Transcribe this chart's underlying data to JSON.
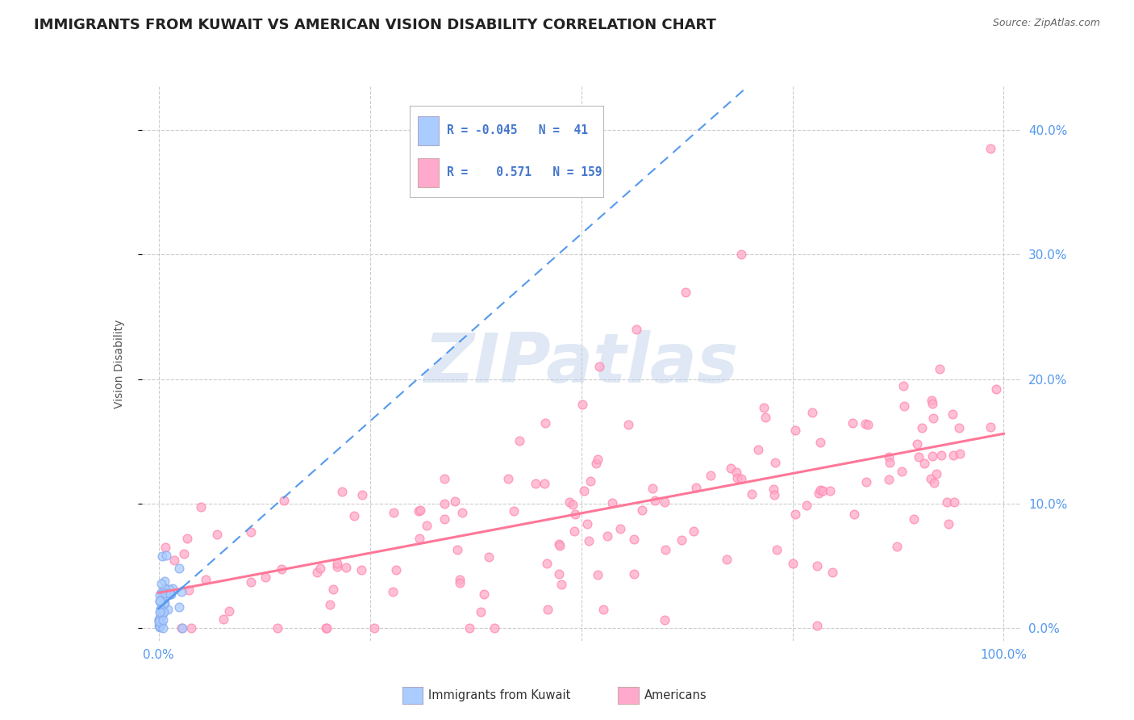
{
  "title": "IMMIGRANTS FROM KUWAIT VS AMERICAN VISION DISABILITY CORRELATION CHART",
  "source": "Source: ZipAtlas.com",
  "ylabel": "Vision Disability",
  "xlim": [
    -0.02,
    1.02
  ],
  "ylim": [
    -0.01,
    0.435
  ],
  "yticks": [
    0.0,
    0.1,
    0.2,
    0.3,
    0.4
  ],
  "grid_color": "#cccccc",
  "background_color": "#ffffff",
  "legend_R_blue": "-0.045",
  "legend_N_blue": "41",
  "legend_R_pink": "0.571",
  "legend_N_pink": "159",
  "blue_scatter_color": "#aaccff",
  "pink_scatter_color": "#ffaacc",
  "blue_line_color": "#5599ee",
  "pink_line_color": "#ff7799",
  "blue_edge_color": "#88aaee",
  "pink_edge_color": "#ff88aa",
  "scatter_size": 60,
  "title_fontsize": 13,
  "axis_label_fontsize": 10,
  "tick_fontsize": 11,
  "tick_color": "#5599ee",
  "blue_seed": 42,
  "pink_seed": 123,
  "blue_n": 41,
  "pink_n": 159
}
